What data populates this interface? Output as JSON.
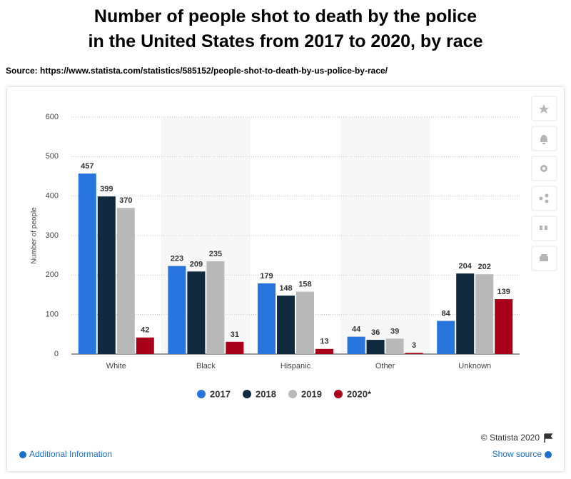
{
  "chart_data": {
    "type": "bar",
    "title": "Number of people shot to death by the police\nin the United States from 2017 to 2020, by race",
    "source": "Source: https://www.statista.com/statistics/585152/people-shot-to-death-by-us-police-by-race/",
    "y_label": "Number of people",
    "categories": [
      "White",
      "Black",
      "Hispanic",
      "Other",
      "Unknown"
    ],
    "series": [
      {
        "name": "2017",
        "color": "#2876dd",
        "values": [
          457,
          223,
          179,
          44,
          84
        ]
      },
      {
        "name": "2018",
        "color": "#0f2a3f",
        "values": [
          399,
          209,
          148,
          36,
          204
        ]
      },
      {
        "name": "2019",
        "color": "#b9b9b9",
        "values": [
          370,
          235,
          158,
          39,
          202
        ]
      },
      {
        "name": "2020*",
        "color": "#a90019",
        "values": [
          42,
          31,
          13,
          3,
          139
        ]
      }
    ],
    "ylim": [
      0,
      600
    ],
    "yticks": [
      0,
      100,
      200,
      300,
      400,
      500,
      600
    ],
    "grid": true,
    "credit": "© Statista 2020",
    "links": [
      "Additional Information",
      "Show source"
    ]
  }
}
